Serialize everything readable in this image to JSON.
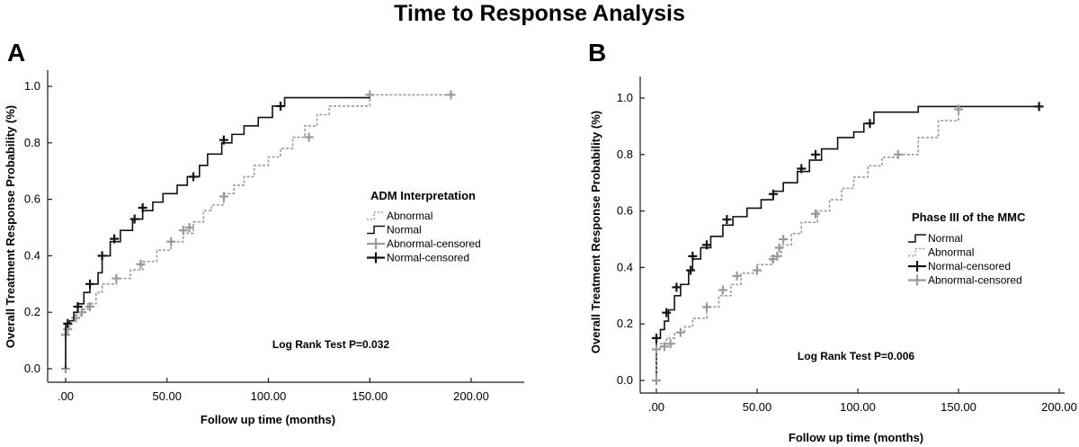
{
  "title": "Time to Response Analysis",
  "colors": {
    "normal": "#111111",
    "abnormal": "#9a9a9a"
  },
  "chart_data": [
    {
      "type": "line",
      "panel": "A",
      "xlabel": "Follow up time (months)",
      "ylabel": "Overall Treatment Response Probability (%)",
      "xlim": [
        0,
        200
      ],
      "ylim": [
        0,
        1.0
      ],
      "x_ticks": [
        0,
        50,
        100,
        150,
        200
      ],
      "x_tick_labels": [
        ".00",
        "50.00",
        "100.00",
        "150.00",
        "200.00"
      ],
      "y_ticks": [
        0,
        0.2,
        0.4,
        0.6,
        0.8,
        1.0
      ],
      "y_tick_labels": [
        "0.0",
        "0.2",
        "0.4",
        "0.6",
        "0.8",
        "1.0"
      ],
      "legend": {
        "title": "ADM  Interpretation",
        "entries": [
          "Abnormal",
          "Normal",
          "Abnormal-censored",
          "Normal-censored"
        ],
        "position": "right"
      },
      "annotation": "Log Rank Test P=0.032",
      "series": [
        {
          "name": "Abnormal",
          "style": "dashed",
          "color": "#9a9a9a",
          "points": [
            [
              0,
              0
            ],
            [
              0,
              0.12
            ],
            [
              1,
              0.15
            ],
            [
              3,
              0.17
            ],
            [
              5,
              0.19
            ],
            [
              8,
              0.21
            ],
            [
              11,
              0.23
            ],
            [
              15,
              0.27
            ],
            [
              18,
              0.3
            ],
            [
              25,
              0.32
            ],
            [
              32,
              0.35
            ],
            [
              38,
              0.38
            ],
            [
              45,
              0.42
            ],
            [
              52,
              0.45
            ],
            [
              58,
              0.48
            ],
            [
              63,
              0.52
            ],
            [
              68,
              0.56
            ],
            [
              72,
              0.58
            ],
            [
              78,
              0.62
            ],
            [
              83,
              0.65
            ],
            [
              88,
              0.68
            ],
            [
              93,
              0.72
            ],
            [
              100,
              0.75
            ],
            [
              106,
              0.78
            ],
            [
              112,
              0.82
            ],
            [
              118,
              0.86
            ],
            [
              124,
              0.9
            ],
            [
              130,
              0.93
            ],
            [
              150,
              0.97
            ],
            [
              190,
              0.97
            ]
          ],
          "censored": [
            [
              0,
              0
            ],
            [
              0,
              0.12
            ],
            [
              1,
              0.14
            ],
            [
              5,
              0.18
            ],
            [
              8,
              0.2
            ],
            [
              12,
              0.22
            ],
            [
              25,
              0.32
            ],
            [
              37,
              0.37
            ],
            [
              52,
              0.45
            ],
            [
              58,
              0.49
            ],
            [
              61,
              0.5
            ],
            [
              78,
              0.61
            ],
            [
              120,
              0.82
            ],
            [
              150,
              0.97
            ],
            [
              190,
              0.97
            ]
          ]
        },
        {
          "name": "Normal",
          "style": "solid",
          "color": "#111111",
          "points": [
            [
              0,
              0
            ],
            [
              0,
              0.16
            ],
            [
              2,
              0.17
            ],
            [
              4,
              0.2
            ],
            [
              6,
              0.23
            ],
            [
              9,
              0.27
            ],
            [
              12,
              0.3
            ],
            [
              16,
              0.34
            ],
            [
              18,
              0.4
            ],
            [
              22,
              0.45
            ],
            [
              27,
              0.49
            ],
            [
              33,
              0.53
            ],
            [
              38,
              0.56
            ],
            [
              43,
              0.59
            ],
            [
              48,
              0.62
            ],
            [
              55,
              0.65
            ],
            [
              60,
              0.68
            ],
            [
              66,
              0.72
            ],
            [
              70,
              0.76
            ],
            [
              77,
              0.8
            ],
            [
              82,
              0.83
            ],
            [
              88,
              0.86
            ],
            [
              95,
              0.89
            ],
            [
              102,
              0.93
            ],
            [
              108,
              0.96
            ],
            [
              150,
              0.96
            ]
          ],
          "censored": [
            [
              1,
              0.16
            ],
            [
              6,
              0.22
            ],
            [
              12,
              0.3
            ],
            [
              18,
              0.4
            ],
            [
              24,
              0.46
            ],
            [
              34,
              0.53
            ],
            [
              38,
              0.57
            ],
            [
              63,
              0.68
            ],
            [
              78,
              0.81
            ],
            [
              106,
              0.93
            ]
          ]
        }
      ]
    },
    {
      "type": "line",
      "panel": "B",
      "xlabel": "Follow up time (months)",
      "ylabel": "Overall Treatment Response Probability (%)",
      "xlim": [
        0,
        200
      ],
      "ylim": [
        0,
        1.0
      ],
      "x_ticks": [
        0,
        50,
        100,
        150,
        200
      ],
      "x_tick_labels": [
        ".00",
        "50.00",
        "100.00",
        "150.00",
        "200.00"
      ],
      "y_ticks": [
        0,
        0.2,
        0.4,
        0.6,
        0.8,
        1.0
      ],
      "y_tick_labels": [
        "0.0",
        "0.2",
        "0.4",
        "0.6",
        "0.8",
        "1.0"
      ],
      "legend": {
        "title": "Phase III of the MMC",
        "entries": [
          "Normal",
          "Abnormal",
          "Normal-censored",
          "Abnormal-censored"
        ],
        "position": "right"
      },
      "annotation": "Log Rank Test P=0.006",
      "series": [
        {
          "name": "Normal",
          "style": "solid",
          "color": "#111111",
          "points": [
            [
              0,
              0
            ],
            [
              0,
              0.15
            ],
            [
              2,
              0.18
            ],
            [
              4,
              0.21
            ],
            [
              6,
              0.25
            ],
            [
              9,
              0.3
            ],
            [
              12,
              0.34
            ],
            [
              16,
              0.39
            ],
            [
              18,
              0.43
            ],
            [
              22,
              0.47
            ],
            [
              27,
              0.51
            ],
            [
              33,
              0.55
            ],
            [
              38,
              0.58
            ],
            [
              45,
              0.61
            ],
            [
              52,
              0.64
            ],
            [
              58,
              0.67
            ],
            [
              63,
              0.7
            ],
            [
              70,
              0.74
            ],
            [
              76,
              0.78
            ],
            [
              82,
              0.82
            ],
            [
              90,
              0.86
            ],
            [
              98,
              0.88
            ],
            [
              103,
              0.91
            ],
            [
              108,
              0.95
            ],
            [
              130,
              0.97
            ],
            [
              190,
              0.97
            ]
          ],
          "censored": [
            [
              0,
              0.15
            ],
            [
              5,
              0.24
            ],
            [
              10,
              0.33
            ],
            [
              17,
              0.39
            ],
            [
              18,
              0.44
            ],
            [
              25,
              0.48
            ],
            [
              35,
              0.57
            ],
            [
              58,
              0.66
            ],
            [
              72,
              0.75
            ],
            [
              79,
              0.8
            ],
            [
              106,
              0.91
            ],
            [
              190,
              0.97
            ]
          ]
        },
        {
          "name": "Abnormal",
          "style": "dashed",
          "color": "#9a9a9a",
          "points": [
            [
              0,
              0
            ],
            [
              0,
              0.11
            ],
            [
              2,
              0.13
            ],
            [
              5,
              0.15
            ],
            [
              9,
              0.17
            ],
            [
              14,
              0.19
            ],
            [
              18,
              0.22
            ],
            [
              25,
              0.26
            ],
            [
              31,
              0.3
            ],
            [
              37,
              0.34
            ],
            [
              42,
              0.38
            ],
            [
              50,
              0.41
            ],
            [
              57,
              0.44
            ],
            [
              62,
              0.48
            ],
            [
              67,
              0.52
            ],
            [
              72,
              0.56
            ],
            [
              80,
              0.6
            ],
            [
              86,
              0.64
            ],
            [
              92,
              0.68
            ],
            [
              98,
              0.72
            ],
            [
              105,
              0.76
            ],
            [
              112,
              0.79
            ],
            [
              120,
              0.8
            ],
            [
              130,
              0.86
            ],
            [
              140,
              0.92
            ],
            [
              150,
              0.96
            ]
          ],
          "censored": [
            [
              0,
              0.0
            ],
            [
              0,
              0.11
            ],
            [
              4,
              0.12
            ],
            [
              7,
              0.13
            ],
            [
              12,
              0.17
            ],
            [
              25,
              0.26
            ],
            [
              33,
              0.32
            ],
            [
              40,
              0.37
            ],
            [
              50,
              0.39
            ],
            [
              58,
              0.43
            ],
            [
              60,
              0.44
            ],
            [
              61,
              0.47
            ],
            [
              63,
              0.5
            ],
            [
              79,
              0.59
            ],
            [
              120,
              0.8
            ],
            [
              150,
              0.96
            ]
          ]
        }
      ]
    }
  ]
}
